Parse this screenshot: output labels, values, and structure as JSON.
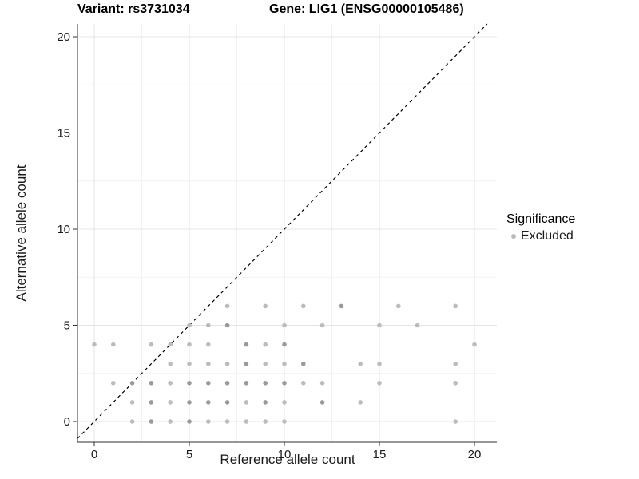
{
  "chart_data": {
    "type": "scatter",
    "title_left": "Variant: rs3731034",
    "title_right": "Gene: LIG1 (ENSG00000105486)",
    "xlabel": "Reference allele count",
    "ylabel": "Alternative allele count",
    "xlim": [
      -1,
      21
    ],
    "ylim": [
      -1,
      21
    ],
    "x_ticks": [
      0,
      5,
      10,
      15,
      20
    ],
    "y_ticks": [
      0,
      5,
      10,
      15,
      20
    ],
    "x_minor_ticks": [
      2.5,
      7.5,
      12.5,
      17.5
    ],
    "y_minor_ticks": [
      2.5,
      7.5,
      12.5,
      17.5
    ],
    "grid": "on",
    "reference_line": {
      "equation": "y = x",
      "style": "dashed",
      "color": "#000000"
    },
    "legend": {
      "title": "Significance",
      "position": "right",
      "items": [
        {
          "label": "Excluded",
          "color": "#b9b9b9"
        }
      ]
    },
    "series": [
      {
        "name": "Excluded",
        "marker": "circle",
        "color": "#bcbcbc",
        "color_overplotted": "#9a9a9a",
        "points": [
          [
            2,
            0,
            0
          ],
          [
            3,
            0,
            1
          ],
          [
            4,
            0,
            0
          ],
          [
            5,
            0,
            1
          ],
          [
            6,
            0,
            0
          ],
          [
            7,
            0,
            0
          ],
          [
            8,
            0,
            0
          ],
          [
            9,
            0,
            0
          ],
          [
            10,
            0,
            0
          ],
          [
            19,
            0,
            0
          ],
          [
            2,
            1,
            0
          ],
          [
            3,
            1,
            1
          ],
          [
            4,
            1,
            0
          ],
          [
            5,
            1,
            1
          ],
          [
            6,
            1,
            1
          ],
          [
            7,
            1,
            1
          ],
          [
            8,
            1,
            0
          ],
          [
            9,
            1,
            1
          ],
          [
            10,
            1,
            0
          ],
          [
            12,
            1,
            1
          ],
          [
            14,
            1,
            0
          ],
          [
            1,
            2,
            0
          ],
          [
            2,
            2,
            1
          ],
          [
            3,
            2,
            1
          ],
          [
            4,
            2,
            0
          ],
          [
            5,
            2,
            1
          ],
          [
            6,
            2,
            1
          ],
          [
            7,
            2,
            1
          ],
          [
            8,
            2,
            1
          ],
          [
            9,
            2,
            1
          ],
          [
            10,
            2,
            1
          ],
          [
            11,
            2,
            0
          ],
          [
            12,
            2,
            0
          ],
          [
            15,
            2,
            0
          ],
          [
            19,
            2,
            0
          ],
          [
            4,
            3,
            0
          ],
          [
            5,
            3,
            0
          ],
          [
            6,
            3,
            0
          ],
          [
            7,
            3,
            0
          ],
          [
            8,
            3,
            1
          ],
          [
            9,
            3,
            0
          ],
          [
            10,
            3,
            0
          ],
          [
            11,
            3,
            1
          ],
          [
            14,
            3,
            0
          ],
          [
            15,
            3,
            0
          ],
          [
            19,
            3,
            0
          ],
          [
            0,
            4,
            0
          ],
          [
            1,
            4,
            0
          ],
          [
            3,
            4,
            0
          ],
          [
            4,
            4,
            0
          ],
          [
            5,
            4,
            0
          ],
          [
            6,
            4,
            0
          ],
          [
            8,
            4,
            1
          ],
          [
            9,
            4,
            0
          ],
          [
            10,
            4,
            1
          ],
          [
            20,
            4,
            0
          ],
          [
            5,
            5,
            0
          ],
          [
            6,
            5,
            0
          ],
          [
            7,
            5,
            1
          ],
          [
            10,
            5,
            0
          ],
          [
            12,
            5,
            0
          ],
          [
            15,
            5,
            0
          ],
          [
            17,
            5,
            0
          ],
          [
            7,
            6,
            0
          ],
          [
            9,
            6,
            0
          ],
          [
            11,
            6,
            0
          ],
          [
            13,
            6,
            1
          ],
          [
            16,
            6,
            0
          ],
          [
            19,
            6,
            0
          ]
        ]
      }
    ],
    "colors": {
      "background": "#ffffff",
      "grid_major": "#e4e4e4",
      "grid_minor": "#f2f2f2",
      "axis": "#2f2f2f",
      "tick_text": "#1a1a1a",
      "title_text": "#000000"
    }
  }
}
